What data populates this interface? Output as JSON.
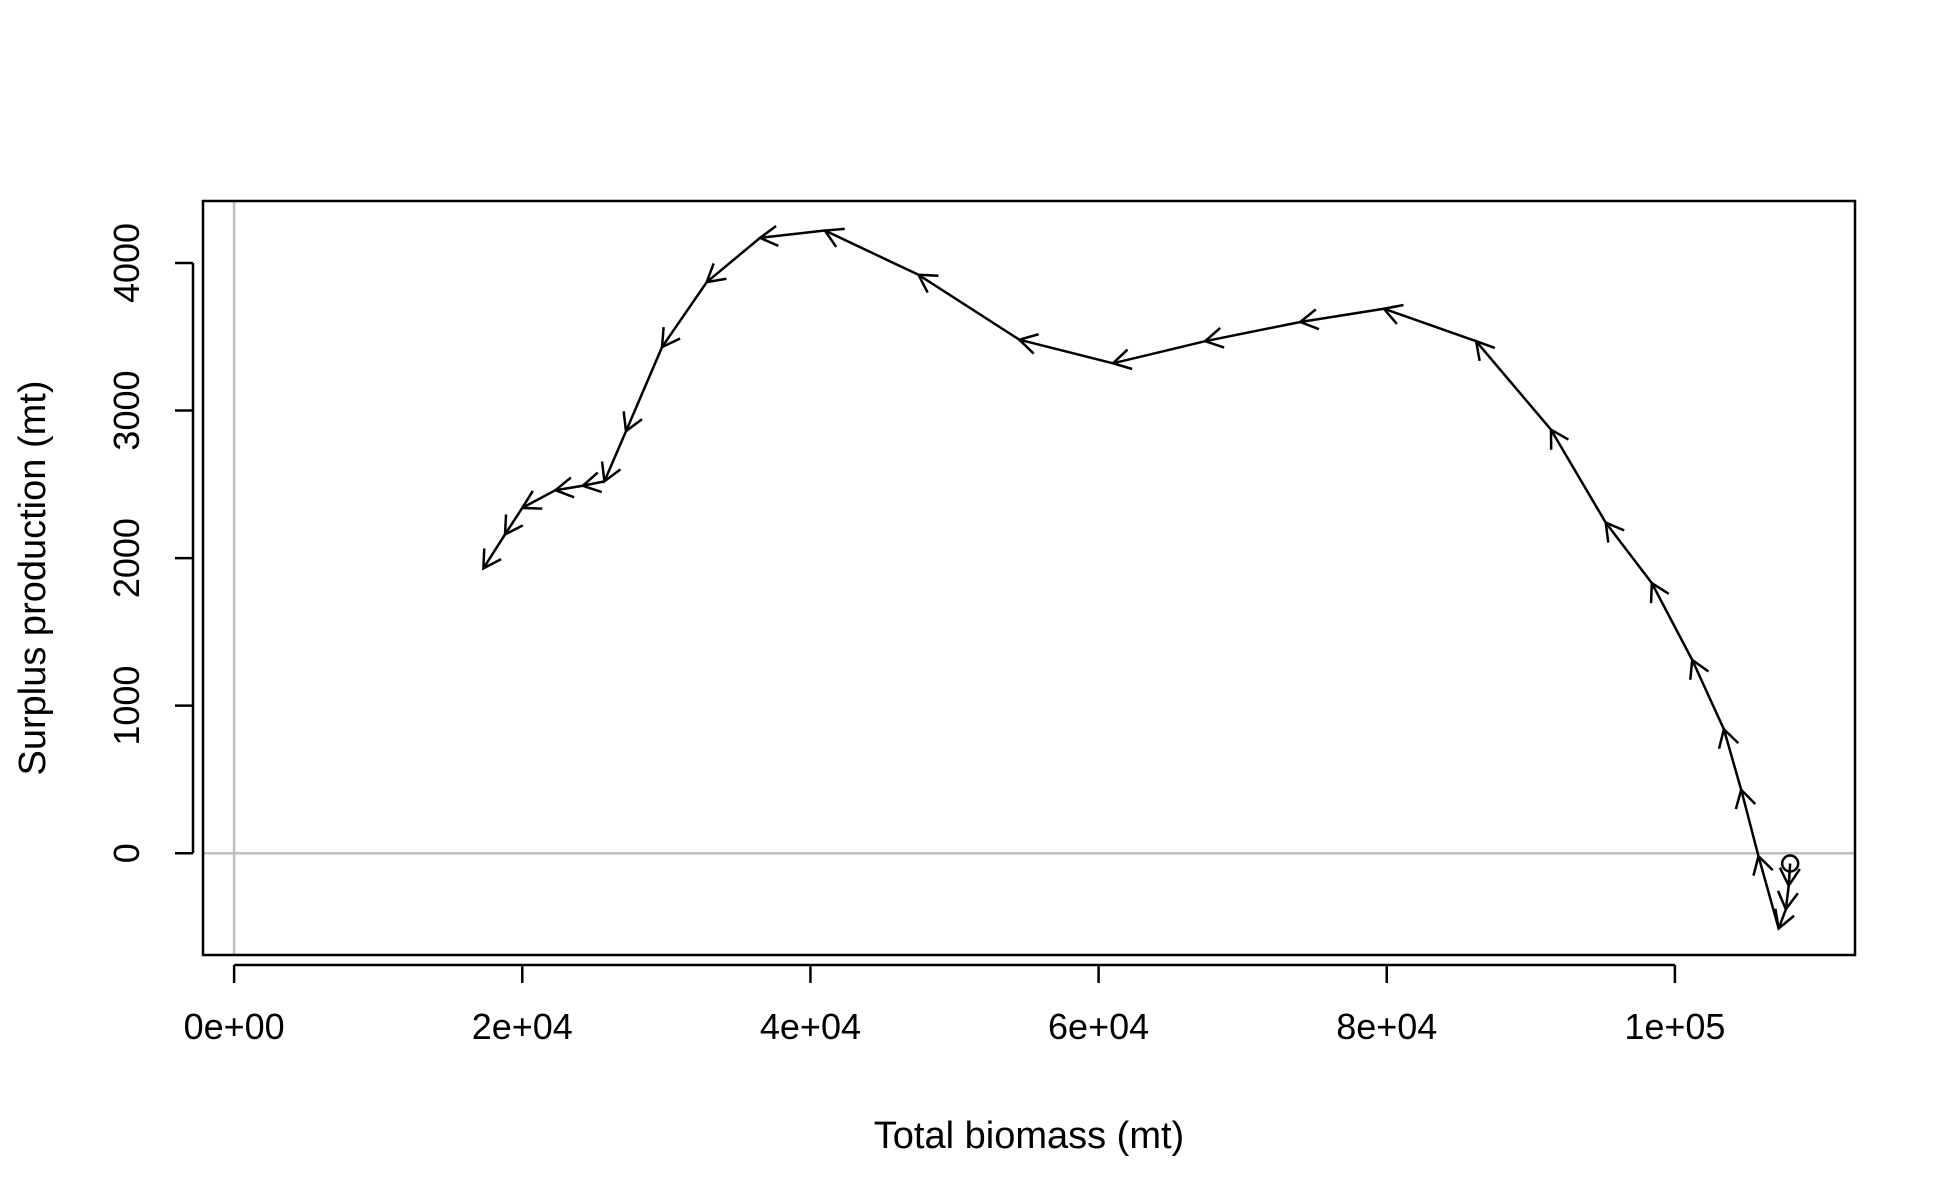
{
  "chart_data": {
    "type": "line",
    "title": "",
    "xlabel": "Total biomass (mt)",
    "ylabel": "Surplus production (mt)",
    "xlim": [
      -2160,
      112500
    ],
    "ylim": [
      -690,
      4420
    ],
    "x_ticks": [
      0,
      20000,
      40000,
      60000,
      80000,
      100000
    ],
    "x_tick_labels": [
      "0e+00",
      "2e+04",
      "4e+04",
      "6e+04",
      "8e+04",
      "1e+05"
    ],
    "y_ticks": [
      0,
      1000,
      2000,
      3000,
      4000
    ],
    "y_tick_labels": [
      "0",
      "1000",
      "2000",
      "3000",
      "4000"
    ],
    "reference_lines": {
      "x": 0,
      "y": 0,
      "color": "#bebebe"
    },
    "grid": false,
    "legend": "none",
    "start_marker": "open-circle",
    "series": [
      {
        "line_color": "#000000",
        "arrows": true,
        "points": [
          {
            "x": 108000,
            "y": -70
          },
          {
            "x": 107900,
            "y": -220
          },
          {
            "x": 107700,
            "y": -380
          },
          {
            "x": 107200,
            "y": -510
          },
          {
            "x": 105800,
            "y": -20
          },
          {
            "x": 104600,
            "y": 430
          },
          {
            "x": 103400,
            "y": 840
          },
          {
            "x": 101200,
            "y": 1310
          },
          {
            "x": 98400,
            "y": 1830
          },
          {
            "x": 95200,
            "y": 2240
          },
          {
            "x": 91400,
            "y": 2870
          },
          {
            "x": 86200,
            "y": 3470
          },
          {
            "x": 79800,
            "y": 3690
          },
          {
            "x": 74000,
            "y": 3600
          },
          {
            "x": 67400,
            "y": 3470
          },
          {
            "x": 61000,
            "y": 3320
          },
          {
            "x": 54500,
            "y": 3480
          },
          {
            "x": 47500,
            "y": 3920
          },
          {
            "x": 41000,
            "y": 4220
          },
          {
            "x": 36500,
            "y": 4170
          },
          {
            "x": 32800,
            "y": 3870
          },
          {
            "x": 29700,
            "y": 3430
          },
          {
            "x": 27200,
            "y": 2860
          },
          {
            "x": 25700,
            "y": 2520
          },
          {
            "x": 24200,
            "y": 2490
          },
          {
            "x": 22300,
            "y": 2460
          },
          {
            "x": 20000,
            "y": 2340
          },
          {
            "x": 18800,
            "y": 2160
          },
          {
            "x": 17300,
            "y": 1930
          }
        ]
      }
    ]
  }
}
